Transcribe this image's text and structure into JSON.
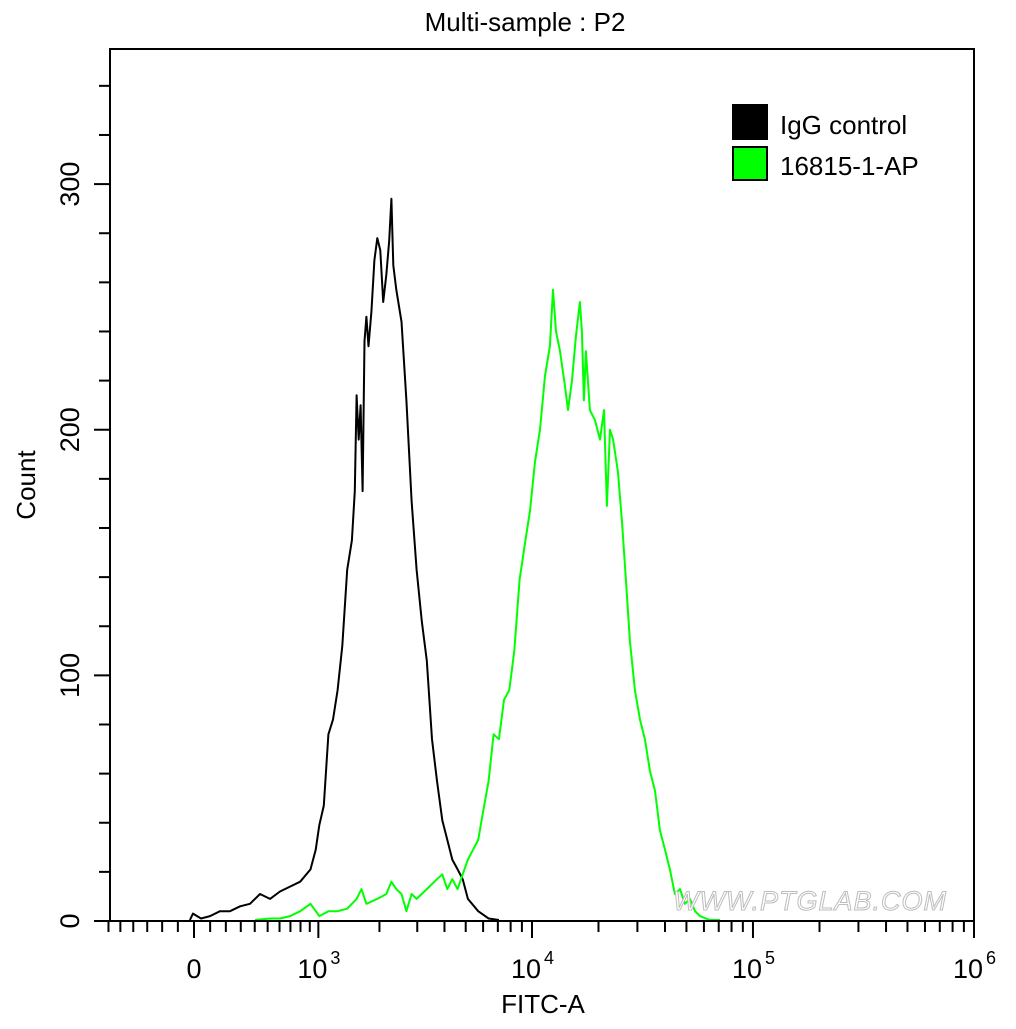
{
  "chart_data": {
    "type": "line",
    "title": "Multi-sample : P2",
    "xlabel": "FITC-A",
    "ylabel": "Count",
    "x_scale": "biexponential",
    "xlim": [
      -600,
      1000000
    ],
    "ylim": [
      0,
      355
    ],
    "grid": false,
    "legend_position": "top-right",
    "x_ticks": [
      {
        "value": 0,
        "base": "0",
        "exp": ""
      },
      {
        "value": 1000,
        "base": "10",
        "exp": "3"
      },
      {
        "value": 10000,
        "base": "10",
        "exp": "4"
      },
      {
        "value": 100000,
        "base": "10",
        "exp": "5"
      },
      {
        "value": 1000000,
        "base": "10",
        "exp": "6"
      }
    ],
    "y_ticks": [
      {
        "value": 0,
        "label": "0"
      },
      {
        "value": 100,
        "label": "100"
      },
      {
        "value": 200,
        "label": "200"
      },
      {
        "value": 300,
        "label": "300"
      }
    ],
    "series": [
      {
        "name": "IgG control",
        "color": "#000000",
        "x": [
          -25,
          -6,
          43,
          99,
          162,
          227,
          295,
          365,
          440,
          519,
          604,
          696,
          797,
          908,
          968,
          1011,
          1067,
          1127,
          1189,
          1255,
          1324,
          1400,
          1476,
          1524,
          1556,
          1592,
          1626,
          1663,
          1698,
          1734,
          1774,
          1832,
          1892,
          1954,
          2018,
          2084,
          2153,
          2223,
          2275,
          2323,
          2399,
          2535,
          2673,
          2825,
          2979,
          3148,
          3319,
          3508,
          3698,
          3908,
          4121,
          4345,
          4592,
          4842,
          5117,
          5702,
          6353,
          7079
        ],
        "y": [
          0,
          3,
          1,
          2,
          4,
          4,
          6,
          7,
          11,
          9,
          12,
          14,
          16,
          21,
          29,
          39,
          47,
          76,
          82,
          94,
          112,
          143,
          155,
          175,
          214,
          196,
          210,
          175,
          236,
          246,
          234,
          248,
          269,
          278,
          273,
          252,
          263,
          277,
          294,
          267,
          257,
          244,
          212,
          171,
          143,
          122,
          106,
          74,
          57,
          41,
          33,
          25,
          21,
          17,
          9,
          4,
          1,
          0
        ]
      },
      {
        "name": "16815-1-AP",
        "color": "#00FF00",
        "x": [
          402,
          519,
          604,
          696,
          797,
          908,
          1011,
          1127,
          1255,
          1400,
          1556,
          1642,
          1734,
          1954,
          2153,
          2275,
          2399,
          2535,
          2673,
          2825,
          2979,
          3319,
          3698,
          3908,
          4121,
          4345,
          4592,
          4842,
          5117,
          5395,
          5702,
          6012,
          6353,
          6699,
          7079,
          7464,
          7888,
          8317,
          8790,
          9268,
          9795,
          10317,
          10870,
          11455,
          12050,
          12445,
          12845,
          13397,
          14093,
          14554,
          15171,
          15812,
          16482,
          16827,
          17179,
          17539,
          18281,
          19275,
          20324,
          21184,
          21827,
          22542,
          23281,
          24491,
          25527,
          26607,
          27733,
          29242,
          30832,
          32434,
          34198,
          36058,
          37931,
          39994,
          42073,
          44361,
          46774,
          49204,
          51880,
          54702,
          57544,
          63826,
          70958
        ],
        "y": [
          0,
          1,
          1,
          2,
          4,
          7,
          2,
          4,
          4,
          5,
          9,
          13,
          7,
          9,
          11,
          16,
          13,
          11,
          4,
          11,
          9,
          13,
          17,
          19,
          13,
          17,
          13,
          19,
          25,
          29,
          33,
          45,
          57,
          76,
          74,
          90,
          94,
          110,
          139,
          153,
          167,
          187,
          200,
          222,
          234,
          257,
          240,
          232,
          218,
          208,
          220,
          238,
          252,
          240,
          212,
          232,
          208,
          204,
          196,
          208,
          169,
          200,
          196,
          183,
          163,
          139,
          114,
          94,
          82,
          74,
          61,
          53,
          37,
          29,
          21,
          11,
          13,
          7,
          9,
          4,
          2,
          0,
          0
        ]
      }
    ],
    "watermark": "WWW.PTGLAB.COM"
  }
}
